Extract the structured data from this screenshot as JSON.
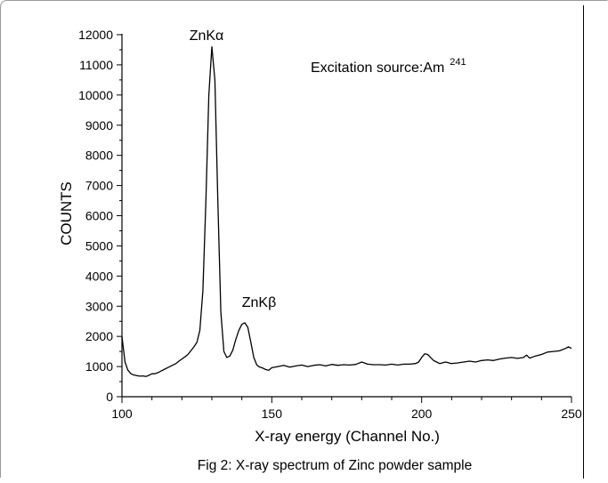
{
  "figure": {
    "caption": "Fig 2: X-ray spectrum of  Zinc powder sample"
  },
  "chart_data": {
    "type": "line",
    "title": "",
    "xlabel": "X-ray energy (Channel No.)",
    "ylabel": "COUNTS",
    "xlim": [
      100,
      250
    ],
    "ylim": [
      0,
      12000
    ],
    "x_ticks": [
      100,
      150,
      200,
      250
    ],
    "y_ticks": [
      0,
      1000,
      2000,
      3000,
      4000,
      5000,
      6000,
      7000,
      8000,
      9000,
      10000,
      11000,
      12000
    ],
    "grid": false,
    "annotations": [
      {
        "text": "ZnKα",
        "x": 130,
        "y": 11600
      },
      {
        "text": "ZnKβ",
        "x": 141,
        "y": 2450
      },
      {
        "text": "Excitation source:Am",
        "superscript": "241"
      }
    ],
    "series": [
      {
        "x": [
          100,
          101,
          102,
          103,
          104,
          105,
          106,
          107,
          108,
          109,
          110,
          111,
          112,
          113,
          114,
          115,
          116,
          117,
          118,
          119,
          120,
          121,
          122,
          123,
          124,
          125,
          126,
          127,
          128,
          129,
          130,
          131,
          132,
          133,
          134,
          135,
          136,
          137,
          138,
          139,
          140,
          141,
          142,
          143,
          144,
          145,
          146,
          147,
          148,
          149,
          150,
          152,
          154,
          156,
          158,
          160,
          162,
          164,
          166,
          168,
          170,
          172,
          174,
          176,
          178,
          180,
          182,
          184,
          186,
          188,
          190,
          192,
          194,
          196,
          198,
          199,
          200,
          201,
          202,
          203,
          204,
          205,
          206,
          208,
          210,
          212,
          214,
          216,
          218,
          220,
          222,
          224,
          226,
          228,
          230,
          232,
          234,
          235,
          236,
          238,
          240,
          242,
          244,
          246,
          248,
          249,
          250
        ],
        "y": [
          2000,
          1150,
          880,
          760,
          720,
          700,
          680,
          690,
          670,
          710,
          760,
          760,
          800,
          850,
          900,
          950,
          1000,
          1050,
          1100,
          1180,
          1250,
          1320,
          1400,
          1520,
          1650,
          1800,
          2200,
          3500,
          6500,
          10000,
          11600,
          10500,
          6500,
          2800,
          1500,
          1300,
          1350,
          1550,
          1900,
          2200,
          2400,
          2450,
          2300,
          1800,
          1300,
          1050,
          980,
          950,
          900,
          880,
          960,
          1000,
          1040,
          980,
          1020,
          1050,
          1000,
          1040,
          1060,
          1020,
          1070,
          1040,
          1060,
          1050,
          1070,
          1150,
          1080,
          1060,
          1060,
          1050,
          1080,
          1050,
          1080,
          1080,
          1100,
          1150,
          1300,
          1420,
          1400,
          1300,
          1200,
          1150,
          1100,
          1150,
          1100,
          1120,
          1150,
          1180,
          1150,
          1200,
          1220,
          1200,
          1250,
          1280,
          1300,
          1270,
          1300,
          1380,
          1280,
          1350,
          1400,
          1480,
          1500,
          1520,
          1600,
          1650,
          1600
        ]
      }
    ]
  }
}
